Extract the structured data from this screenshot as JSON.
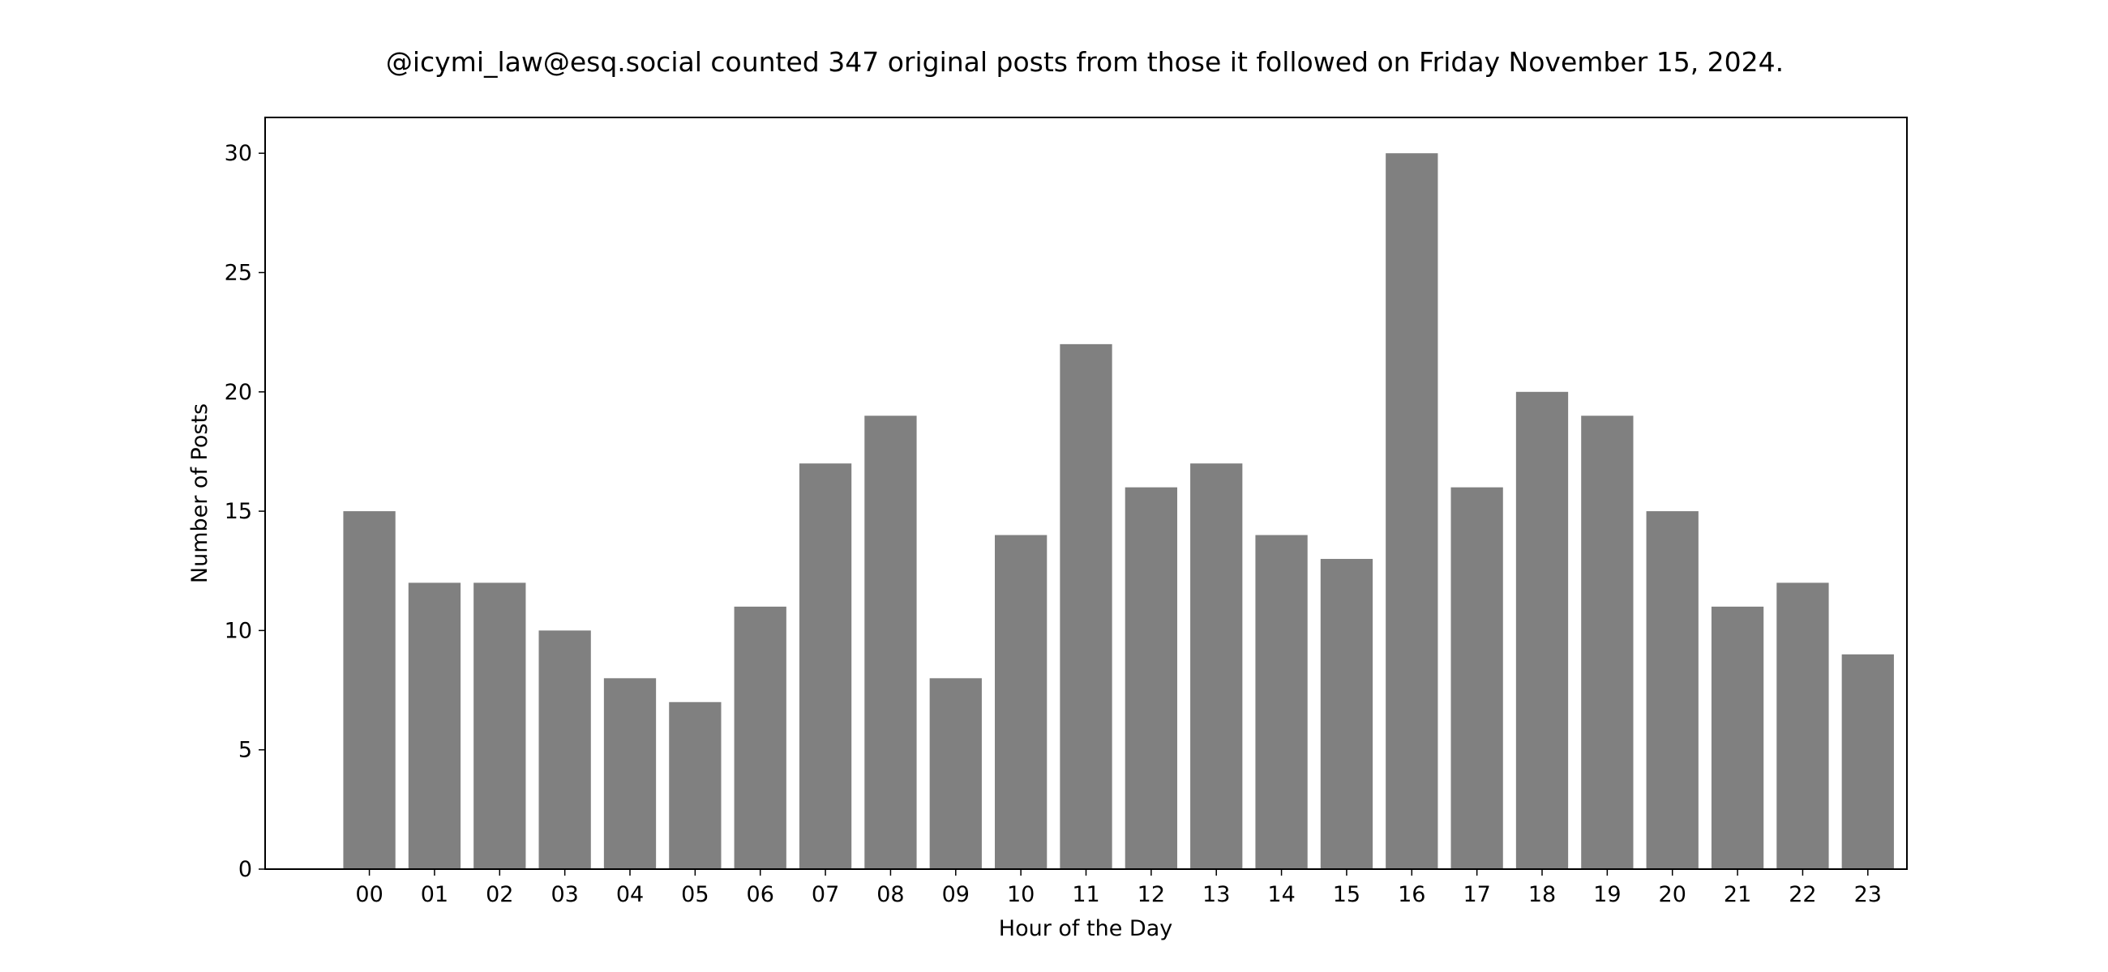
{
  "chart_data": {
    "type": "bar",
    "title": "@icymi_law@esq.social counted 347 original posts from those it followed on Friday November 15, 2024.",
    "xlabel": "Hour of the Day",
    "ylabel": "Number of Posts",
    "categories": [
      "00",
      "01",
      "02",
      "03",
      "04",
      "05",
      "06",
      "07",
      "08",
      "09",
      "10",
      "11",
      "12",
      "13",
      "14",
      "15",
      "16",
      "17",
      "18",
      "19",
      "20",
      "21",
      "22",
      "23"
    ],
    "values": [
      15,
      12,
      12,
      10,
      8,
      7,
      11,
      17,
      19,
      8,
      14,
      22,
      16,
      17,
      14,
      13,
      30,
      16,
      20,
      19,
      15,
      11,
      12,
      9
    ],
    "yticks": [
      0,
      5,
      10,
      15,
      20,
      25,
      30
    ],
    "ylim": [
      0,
      31.5
    ],
    "xlim": [
      -1.6,
      23.6
    ],
    "grid": false,
    "bar_color": "#808080"
  }
}
